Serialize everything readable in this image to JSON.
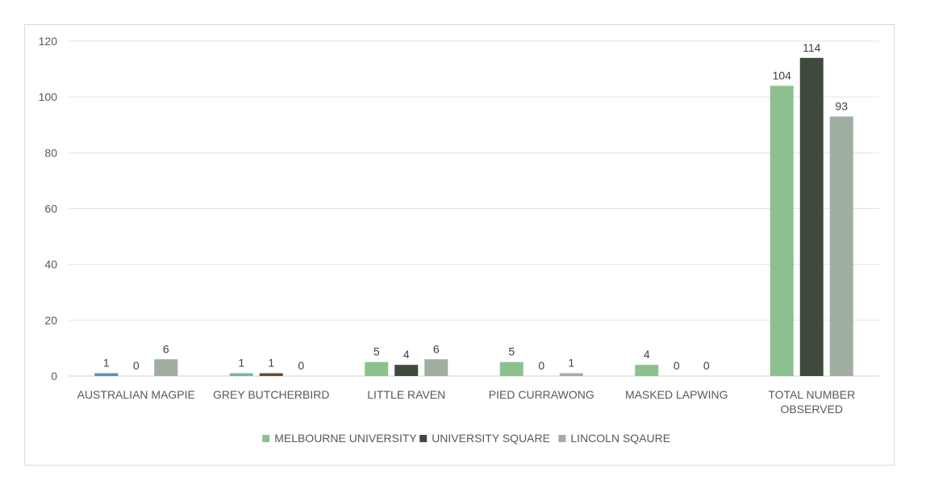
{
  "chart_data": {
    "type": "bar",
    "categories": [
      [
        "AUSTRALIAN MAGPIE"
      ],
      [
        "GREY BUTCHERBIRD"
      ],
      [
        "LITTLE RAVEN"
      ],
      [
        "PIED CURRAWONG"
      ],
      [
        "MASKED LAPWING"
      ],
      [
        "TOTAL NUMBER",
        "OBSERVED"
      ]
    ],
    "series": [
      {
        "name": "MELBOURNE UNIVERSITY",
        "values": [
          1,
          1,
          5,
          5,
          4,
          104
        ],
        "colors": [
          "#5b8fb7",
          "#7fb3a4",
          "#8dc08f",
          "#8dc08f",
          "#8dc08f",
          "#8dc08f"
        ]
      },
      {
        "name": "UNIVERSITY SQUARE",
        "values": [
          0,
          1,
          4,
          0,
          0,
          114
        ],
        "colors": [
          "#3f4a3d",
          "#6b4a2e",
          "#3f4a3d",
          "#3f4a3d",
          "#3f4a3d",
          "#3f4a3d"
        ]
      },
      {
        "name": "LINCOLN SQAURE",
        "values": [
          6,
          0,
          6,
          1,
          0,
          93
        ],
        "colors": [
          "#a0aea1",
          "#a0aea1",
          "#a0aea1",
          "#a0aea1",
          "#a0aea1",
          "#a0aea1"
        ]
      }
    ],
    "legend_colors": [
      "#8dc08f",
      "#3f4a3d",
      "#a0aea1"
    ],
    "yticks": [
      0,
      20,
      40,
      60,
      80,
      100,
      120
    ],
    "ylim": [
      0,
      120
    ],
    "grid": true,
    "legend_position": "bottom",
    "data_labels": true
  }
}
